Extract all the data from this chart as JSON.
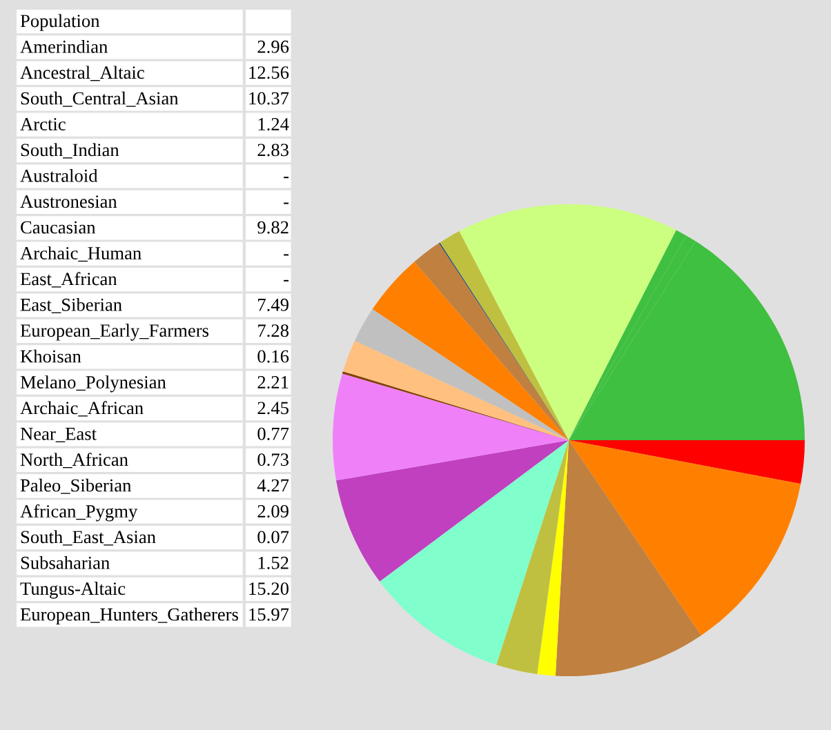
{
  "chart_data": [
    {
      "type": "other",
      "title": "Population",
      "annotations": [
        "Amerindian",
        "2.96",
        "Ancestral_Altaic",
        "12.56",
        "South_Central_Asian",
        "10.37",
        "Arctic",
        "1.24",
        "South_Indian",
        "2.83",
        "Australoid",
        "-",
        "Austronesian",
        "-",
        "Caucasian",
        "9.82",
        "Archaic_Human",
        "-",
        "East_African",
        "-",
        "East_Siberian",
        "7.49",
        "European_Early_Farmers",
        "7.28",
        "Khoisan",
        "0.16",
        "Melano_Polynesian",
        "2.21",
        "Archaic_African",
        "2.45",
        "Near_East",
        "0.77",
        "North_African",
        "0.73",
        "Paleo_Siberian",
        "4.27",
        "African_Pygmy",
        "2.09",
        "South_East_Asian",
        "0.07",
        "Subsaharian",
        "1.52",
        "Tungus-Altaic",
        "15.20",
        "European_Hunters_Gatherers",
        "15.97"
      ]
    },
    {
      "type": "pie",
      "categories": [
        null,
        null,
        null,
        null,
        null,
        null,
        null,
        null,
        null,
        null,
        null,
        null,
        null,
        null,
        null,
        null,
        null,
        null,
        null
      ],
      "values": [
        2.96,
        12.56,
        10.37,
        1.24,
        2.83,
        9.82,
        7.49,
        7.28,
        0.16,
        2.21,
        2.45,
        4.27,
        2.09,
        0.07,
        1.52,
        15.2,
        0.77,
        0.73,
        15.97
      ],
      "colors": [
        "#ff0000",
        "#ff8000",
        "#c08040",
        "#ffff00",
        "#c0c040",
        "#80ffcc",
        "#c040c0",
        "#f080f8",
        "#804000",
        "#ffc080",
        "#c0c0c0",
        "#ff8000",
        "#c08040",
        "#004080",
        "#c0c040",
        "#ccff80",
        "#40c040",
        "#40c040",
        "#40c040"
      ]
    }
  ]
}
